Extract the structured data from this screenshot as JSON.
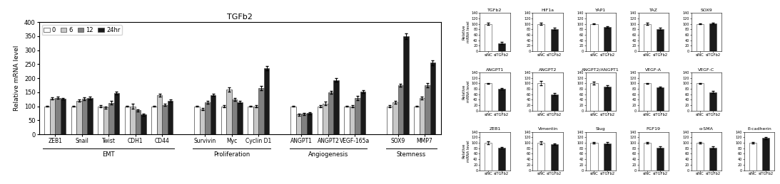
{
  "chart_data": [
    {
      "type": "bar",
      "title": "TGFb2",
      "ylabel": "Relative mRNA level",
      "categories": [
        "ZEB1",
        "Snail",
        "Twist",
        "CDH1",
        "CD44",
        "Survivin",
        "Myc",
        "Cyclin D1",
        "ANGPT1",
        "ANGPT2",
        "VEGF-165a",
        "SOX9",
        "MMP7"
      ],
      "category_groups": [
        "EMT",
        "EMT",
        "EMT",
        "EMT",
        "EMT",
        "Proliferation",
        "Proliferation",
        "Proliferation",
        "Angiogenesis",
        "Angiogenesis",
        "Angiogenesis",
        "Stemness",
        "Stemness"
      ],
      "series": [
        {
          "name": "0",
          "color": "white",
          "values": [
            100,
            100,
            100,
            100,
            100,
            100,
            100,
            100,
            100,
            100,
            100,
            100,
            100
          ],
          "errors": [
            2,
            2,
            3,
            2,
            2,
            2,
            3,
            2,
            2,
            3,
            2,
            3,
            2
          ]
        },
        {
          "name": "6",
          "color": "#c8c8c8",
          "values": [
            128,
            120,
            96,
            100,
            140,
            90,
            160,
            100,
            70,
            110,
            100,
            115,
            130
          ],
          "errors": [
            5,
            3,
            4,
            8,
            5,
            3,
            8,
            4,
            3,
            7,
            3,
            5,
            5
          ]
        },
        {
          "name": "12",
          "color": "#808080",
          "values": [
            130,
            126,
            112,
            85,
            105,
            115,
            125,
            165,
            73,
            150,
            130,
            175,
            175
          ],
          "errors": [
            4,
            5,
            6,
            4,
            3,
            5,
            5,
            7,
            4,
            5,
            8,
            6,
            7
          ]
        },
        {
          "name": "24hr",
          "color": "#1a1a1a",
          "values": [
            127,
            130,
            148,
            70,
            120,
            140,
            115,
            235,
            75,
            193,
            152,
            350,
            255
          ],
          "errors": [
            3,
            5,
            5,
            3,
            4,
            4,
            4,
            7,
            3,
            6,
            5,
            10,
            8
          ]
        }
      ],
      "ylim": [
        0,
        400
      ],
      "yticks": [
        0,
        50,
        100,
        150,
        200,
        250,
        300,
        350,
        400
      ],
      "legend": "upper left"
    },
    {
      "type": "bar",
      "title": "TGFb2",
      "ylabel": "Relative\nmRNA level",
      "categories": [
        "siNC",
        "siTGFb2"
      ],
      "values": [
        100,
        30
      ],
      "errors": [
        3,
        5
      ],
      "colors": [
        "white",
        "#1a1a1a"
      ],
      "ylim": [
        0,
        140
      ],
      "yticks": [
        0,
        20,
        40,
        60,
        80,
        100,
        120,
        140
      ]
    },
    {
      "type": "bar",
      "title": "HIF1a",
      "categories": [
        "siNC",
        "siTGFb2"
      ],
      "values": [
        100,
        82
      ],
      "errors": [
        3,
        4
      ],
      "colors": [
        "white",
        "#1a1a1a"
      ],
      "ylim": [
        0,
        140
      ],
      "yticks": [
        0,
        20,
        40,
        60,
        80,
        100,
        120,
        140
      ]
    },
    {
      "type": "bar",
      "title": "YAP1",
      "categories": [
        "siNC",
        "siTGFb2"
      ],
      "values": [
        100,
        88
      ],
      "errors": [
        2,
        3
      ],
      "colors": [
        "white",
        "#1a1a1a"
      ],
      "ylim": [
        0,
        140
      ],
      "yticks": [
        0,
        20,
        40,
        60,
        80,
        100,
        120,
        140
      ]
    },
    {
      "type": "bar",
      "title": "TAZ",
      "categories": [
        "siNC",
        "siTGFb2"
      ],
      "values": [
        100,
        82
      ],
      "errors": [
        5,
        3
      ],
      "colors": [
        "white",
        "#1a1a1a"
      ],
      "ylim": [
        0,
        140
      ],
      "yticks": [
        0,
        20,
        40,
        60,
        80,
        100,
        120,
        140
      ]
    },
    {
      "type": "bar",
      "title": "SOX9",
      "categories": [
        "siNC",
        "siTGFb2"
      ],
      "values": [
        100,
        102
      ],
      "errors": [
        2,
        3
      ],
      "colors": [
        "white",
        "#1a1a1a"
      ],
      "ylim": [
        0,
        140
      ],
      "yticks": [
        0,
        20,
        40,
        60,
        80,
        100,
        120,
        140
      ]
    },
    {
      "type": "bar",
      "title": "ANGPT1",
      "ylabel": "Relative\nmRNA level",
      "categories": [
        "siNC",
        "siTGFb2"
      ],
      "values": [
        100,
        80
      ],
      "errors": [
        2,
        3
      ],
      "colors": [
        "white",
        "#1a1a1a"
      ],
      "ylim": [
        0,
        140
      ],
      "yticks": [
        0,
        20,
        40,
        60,
        80,
        100,
        120,
        140
      ]
    },
    {
      "type": "bar",
      "title": "ANGPT2",
      "categories": [
        "siNC",
        "siTGFb2"
      ],
      "values": [
        100,
        60
      ],
      "errors": [
        8,
        4
      ],
      "colors": [
        "white",
        "#1a1a1a"
      ],
      "ylim": [
        0,
        140
      ],
      "yticks": [
        0,
        20,
        40,
        60,
        80,
        100,
        120,
        140
      ]
    },
    {
      "type": "bar",
      "title": "ANGPT2/ANGPT1",
      "categories": [
        "siNC",
        "siTGFb2"
      ],
      "values": [
        100,
        88
      ],
      "errors": [
        5,
        4
      ],
      "colors": [
        "white",
        "#1a1a1a"
      ],
      "ylim": [
        0,
        140
      ],
      "yticks": [
        0,
        20,
        40,
        60,
        80,
        100,
        120,
        140
      ]
    },
    {
      "type": "bar",
      "title": "VEGF-A",
      "categories": [
        "siNC",
        "siTGFb2"
      ],
      "values": [
        100,
        86
      ],
      "errors": [
        2,
        3
      ],
      "colors": [
        "white",
        "#1a1a1a"
      ],
      "ylim": [
        0,
        140
      ],
      "yticks": [
        0,
        20,
        40,
        60,
        80,
        100,
        120,
        140
      ]
    },
    {
      "type": "bar",
      "title": "VEGF-C",
      "categories": [
        "siNC",
        "siTGFb2"
      ],
      "values": [
        100,
        68
      ],
      "errors": [
        2,
        4
      ],
      "colors": [
        "white",
        "#1a1a1a"
      ],
      "ylim": [
        0,
        140
      ],
      "yticks": [
        0,
        20,
        40,
        60,
        80,
        100,
        120,
        140
      ]
    },
    {
      "type": "bar",
      "title": "ZEB1",
      "ylabel": "Relative\nmRNA level",
      "categories": [
        "siNC",
        "siTGFb2"
      ],
      "values": [
        100,
        82
      ],
      "errors": [
        4,
        3
      ],
      "colors": [
        "white",
        "#1a1a1a"
      ],
      "ylim": [
        0,
        140
      ],
      "yticks": [
        0,
        20,
        40,
        60,
        80,
        100,
        120,
        140
      ]
    },
    {
      "type": "bar",
      "title": "Vimentin",
      "categories": [
        "siNC",
        "siTGFb2"
      ],
      "values": [
        100,
        95
      ],
      "errors": [
        4,
        3
      ],
      "colors": [
        "white",
        "#1a1a1a"
      ],
      "ylim": [
        0,
        140
      ],
      "yticks": [
        0,
        20,
        40,
        60,
        80,
        100,
        120,
        140
      ]
    },
    {
      "type": "bar",
      "title": "Slug",
      "categories": [
        "siNC",
        "siTGFb2"
      ],
      "values": [
        100,
        98
      ],
      "errors": [
        3,
        4
      ],
      "colors": [
        "white",
        "#1a1a1a"
      ],
      "ylim": [
        0,
        140
      ],
      "yticks": [
        0,
        20,
        40,
        60,
        80,
        100,
        120,
        140
      ]
    },
    {
      "type": "bar",
      "title": "FGF19",
      "categories": [
        "siNC",
        "siTGFb2"
      ],
      "values": [
        100,
        82
      ],
      "errors": [
        3,
        4
      ],
      "colors": [
        "white",
        "#1a1a1a"
      ],
      "ylim": [
        0,
        140
      ],
      "yticks": [
        0,
        20,
        40,
        60,
        80,
        100,
        120,
        140
      ]
    },
    {
      "type": "bar",
      "title": "α-SMA",
      "categories": [
        "siNC",
        "siTGFb2"
      ],
      "values": [
        100,
        83
      ],
      "errors": [
        2,
        4
      ],
      "colors": [
        "white",
        "#1a1a1a"
      ],
      "ylim": [
        0,
        140
      ],
      "yticks": [
        0,
        20,
        40,
        60,
        80,
        100,
        120,
        140
      ]
    },
    {
      "type": "bar",
      "title": "E-cadherin",
      "categories": [
        "siNC",
        "siTGFb2"
      ],
      "values": [
        100,
        118
      ],
      "errors": [
        2,
        4
      ],
      "colors": [
        "white",
        "#1a1a1a"
      ],
      "ylim": [
        0,
        140
      ],
      "yticks": [
        0,
        20,
        40,
        60,
        80,
        100,
        120,
        140
      ]
    }
  ]
}
